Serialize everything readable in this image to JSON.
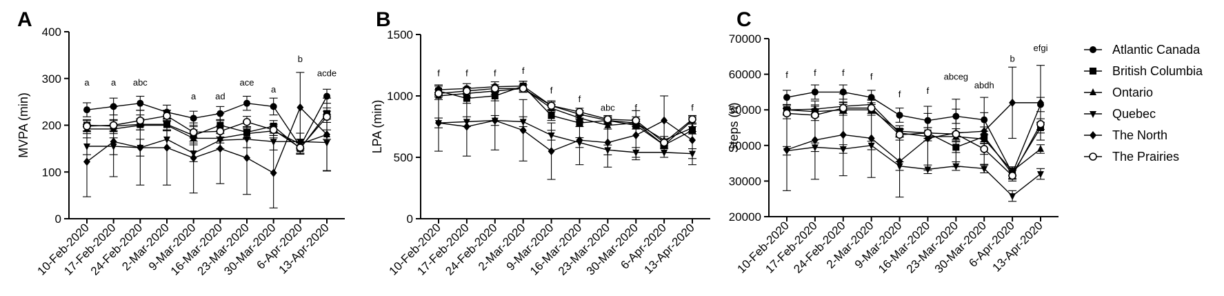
{
  "figure": {
    "legend": [
      {
        "name": "Atlantic Canada",
        "marker": "circle"
      },
      {
        "name": "British Columbia",
        "marker": "square"
      },
      {
        "name": "Ontario",
        "marker": "triangle-up"
      },
      {
        "name": "Quebec",
        "marker": "triangle-down"
      },
      {
        "name": "The North",
        "marker": "diamond"
      },
      {
        "name": "The Prairies",
        "marker": "open-circle"
      }
    ]
  },
  "chart_data": [
    {
      "panel": "A",
      "type": "line",
      "ylabel": "MVPA (min)",
      "ylim": [
        0,
        400
      ],
      "yticks": [
        0,
        100,
        200,
        300,
        400
      ],
      "categories": [
        "10-Feb-2020",
        "17-Feb-2020",
        "24-Feb-2020",
        "2-Mar-2020",
        "9-Mar-2020",
        "16-Mar-2020",
        "23-Mar-2020",
        "30-Mar-2020",
        "6-Apr-2020",
        "13-Apr-2020"
      ],
      "annotations": [
        {
          "category": 0,
          "text": "a",
          "y": 285
        },
        {
          "category": 1,
          "text": "a",
          "y": 285
        },
        {
          "category": 2,
          "text": "abc",
          "y": 285
        },
        {
          "category": 4,
          "text": "a",
          "y": 255
        },
        {
          "category": 5,
          "text": "ad",
          "y": 255
        },
        {
          "category": 6,
          "text": "ace",
          "y": 285
        },
        {
          "category": 7,
          "text": "a",
          "y": 270
        },
        {
          "category": 8,
          "text": "b",
          "y": 335
        },
        {
          "category": 9,
          "text": "acde",
          "y": 305
        }
      ],
      "series": [
        {
          "name": "Atlantic Canada",
          "marker": "circle",
          "values": [
            233,
            240,
            247,
            228,
            215,
            225,
            247,
            240,
            155,
            262
          ],
          "err": [
            15,
            18,
            15,
            15,
            15,
            15,
            15,
            18,
            15,
            15
          ]
        },
        {
          "name": "British Columbia",
          "marker": "square",
          "values": [
            200,
            198,
            202,
            202,
            178,
            200,
            185,
            198,
            150,
            225
          ],
          "err": [
            12,
            12,
            12,
            12,
            12,
            12,
            12,
            12,
            12,
            12
          ]
        },
        {
          "name": "Ontario",
          "marker": "triangle-up",
          "values": [
            192,
            192,
            200,
            200,
            172,
            172,
            182,
            188,
            160,
            180
          ],
          "err": [
            10,
            10,
            10,
            10,
            10,
            10,
            10,
            10,
            10,
            10
          ]
        },
        {
          "name": "Quebec",
          "marker": "triangle-down",
          "values": [
            155,
            155,
            152,
            170,
            140,
            168,
            170,
            165,
            165,
            163
          ],
          "err": [
            18,
            18,
            18,
            18,
            18,
            18,
            18,
            18,
            18,
            60
          ]
        },
        {
          "name": "The North",
          "marker": "diamond",
          "values": [
            122,
            165,
            152,
            152,
            130,
            150,
            130,
            98,
            238,
            180
          ],
          "err": [
            75,
            75,
            80,
            80,
            75,
            75,
            78,
            75,
            75,
            78
          ]
        },
        {
          "name": "The Prairies",
          "marker": "open-circle",
          "values": [
            198,
            200,
            210,
            220,
            185,
            187,
            207,
            190,
            152,
            218
          ],
          "err": [
            12,
            12,
            12,
            12,
            12,
            12,
            12,
            12,
            12,
            12
          ]
        }
      ]
    },
    {
      "panel": "B",
      "type": "line",
      "ylabel": "LPA (min)",
      "ylim": [
        0,
        1500
      ],
      "yticks": [
        0,
        500,
        1000,
        1500
      ],
      "categories": [
        "10-Feb-2020",
        "17-Feb-2020",
        "24-Feb-2020",
        "2-Mar-2020",
        "9-Mar-2020",
        "16-Mar-2020",
        "23-Mar-2020",
        "30-Mar-2020",
        "6-Apr-2020",
        "13-Apr-2020"
      ],
      "annotations": [
        {
          "category": 0,
          "text": "f",
          "y": 1160
        },
        {
          "category": 1,
          "text": "f",
          "y": 1160
        },
        {
          "category": 2,
          "text": "f",
          "y": 1160
        },
        {
          "category": 3,
          "text": "f",
          "y": 1180
        },
        {
          "category": 4,
          "text": "f",
          "y": 1020
        },
        {
          "category": 5,
          "text": "f",
          "y": 950
        },
        {
          "category": 6,
          "text": "abc",
          "y": 880
        },
        {
          "category": 7,
          "text": "f",
          "y": 880
        },
        {
          "category": 9,
          "text": "f",
          "y": 880
        }
      ],
      "series": [
        {
          "name": "Atlantic Canada",
          "marker": "circle",
          "values": [
            1050,
            1060,
            1075,
            1080,
            920,
            850,
            800,
            780,
            600,
            800
          ],
          "err": [
            40,
            40,
            40,
            40,
            40,
            30,
            30,
            30,
            30,
            30
          ]
        },
        {
          "name": "British Columbia",
          "marker": "square",
          "values": [
            1040,
            980,
            1000,
            1080,
            840,
            780,
            800,
            760,
            600,
            720
          ],
          "err": [
            40,
            40,
            40,
            40,
            40,
            30,
            30,
            30,
            30,
            30
          ]
        },
        {
          "name": "Ontario",
          "marker": "triangle-up",
          "values": [
            1000,
            1020,
            1040,
            1060,
            900,
            820,
            760,
            780,
            640,
            740
          ],
          "err": [
            30,
            30,
            30,
            30,
            30,
            30,
            30,
            30,
            30,
            30
          ]
        },
        {
          "name": "Quebec",
          "marker": "triangle-down",
          "values": [
            780,
            790,
            800,
            790,
            680,
            620,
            560,
            540,
            540,
            530
          ],
          "err": [
            40,
            40,
            40,
            40,
            40,
            40,
            40,
            40,
            40,
            40
          ]
        },
        {
          "name": "The North",
          "marker": "diamond",
          "values": [
            780,
            750,
            800,
            720,
            550,
            640,
            620,
            680,
            800,
            640
          ],
          "err": [
            230,
            240,
            240,
            250,
            230,
            200,
            200,
            200,
            200,
            200
          ]
        },
        {
          "name": "The Prairies",
          "marker": "open-circle",
          "values": [
            1020,
            1040,
            1060,
            1060,
            920,
            870,
            810,
            800,
            620,
            810
          ],
          "err": [
            30,
            30,
            30,
            30,
            30,
            30,
            30,
            30,
            30,
            30
          ]
        }
      ]
    },
    {
      "panel": "C",
      "type": "line",
      "ylabel": "Steps (n)",
      "ylim": [
        20000,
        70000
      ],
      "yticks": [
        20000,
        30000,
        40000,
        50000,
        60000,
        70000
      ],
      "categories": [
        "10-Feb-2020",
        "17-Feb-2020",
        "24-Feb-2020",
        "2-Mar-2020",
        "9-Mar-2020",
        "16-Mar-2020",
        "23-Mar-2020",
        "30-Mar-2020",
        "6-Apr-2020",
        "13-Apr-2020"
      ],
      "annotations": [
        {
          "category": 0,
          "text": "f",
          "y": 59000
        },
        {
          "category": 1,
          "text": "f",
          "y": 59500
        },
        {
          "category": 2,
          "text": "f",
          "y": 59500
        },
        {
          "category": 3,
          "text": "f",
          "y": 58500
        },
        {
          "category": 4,
          "text": "f",
          "y": 53500
        },
        {
          "category": 5,
          "text": "f",
          "y": 54500
        },
        {
          "category": 6,
          "text": "abceg",
          "y": 58500
        },
        {
          "category": 7,
          "text": "abdh",
          "y": 56000
        },
        {
          "category": 8,
          "text": "b",
          "y": 63500
        },
        {
          "category": 9,
          "text": "efgi",
          "y": 66500
        }
      ],
      "series": [
        {
          "name": "Atlantic Canada",
          "marker": "circle",
          "values": [
            53500,
            55000,
            55000,
            53500,
            48500,
            47000,
            48200,
            47200,
            32200,
            51500
          ],
          "err": [
            2000,
            2000,
            2000,
            2000,
            2000,
            2000,
            2000,
            2000,
            1500,
            2000
          ]
        },
        {
          "name": "British Columbia",
          "marker": "square",
          "values": [
            50000,
            49500,
            50000,
            50000,
            44000,
            43500,
            39500,
            42500,
            32000,
            45000
          ],
          "err": [
            1500,
            1500,
            1500,
            1500,
            1500,
            1500,
            1500,
            1500,
            1500,
            1500
          ]
        },
        {
          "name": "Ontario",
          "marker": "triangle-up",
          "values": [
            50000,
            50200,
            51000,
            51500,
            43500,
            42500,
            42500,
            41800,
            32800,
            39000
          ],
          "err": [
            1200,
            1200,
            1200,
            1200,
            1200,
            1200,
            1200,
            1200,
            1200,
            1200
          ]
        },
        {
          "name": "Quebec",
          "marker": "triangle-down",
          "values": [
            38500,
            39500,
            39000,
            40000,
            34200,
            33300,
            34200,
            33500,
            25800,
            32000
          ],
          "err": [
            1200,
            1200,
            1200,
            1200,
            1200,
            1200,
            1200,
            1200,
            1500,
            1500
          ]
        },
        {
          "name": "The North",
          "marker": "diamond",
          "values": [
            38800,
            41500,
            43000,
            42000,
            35500,
            42000,
            43500,
            44000,
            52000,
            52000
          ],
          "err": [
            11500,
            11000,
            11500,
            11000,
            10000,
            9000,
            9500,
            9500,
            10000,
            10500
          ]
        },
        {
          "name": "The Prairies",
          "marker": "open-circle",
          "values": [
            49000,
            48500,
            50500,
            50500,
            43000,
            43500,
            43200,
            39000,
            31500,
            46000
          ],
          "err": [
            1500,
            1500,
            1500,
            1500,
            1500,
            1500,
            1500,
            1500,
            1500,
            1500
          ]
        }
      ]
    }
  ]
}
